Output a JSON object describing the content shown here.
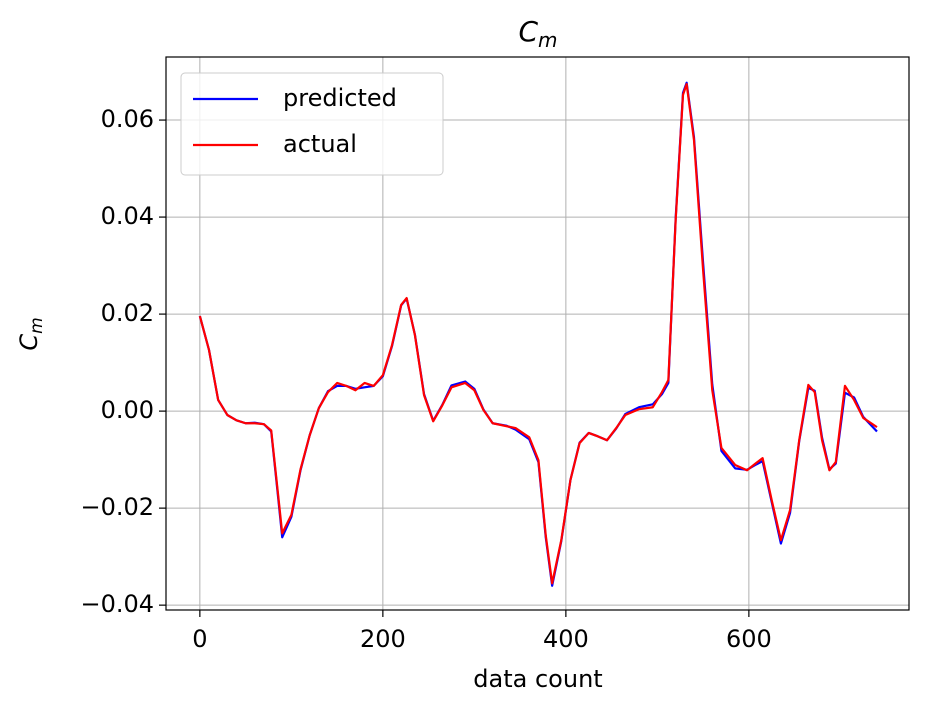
{
  "chart_data": {
    "type": "line",
    "title": [
      "C",
      "m"
    ],
    "xlabel": "data count",
    "ylabel": [
      "C",
      "m"
    ],
    "x": [
      0,
      10,
      20,
      30,
      40,
      50,
      60,
      70,
      78,
      85,
      90,
      100,
      110,
      120,
      130,
      140,
      150,
      160,
      170,
      180,
      190,
      200,
      210,
      220,
      226,
      235,
      245,
      255,
      265,
      275,
      290,
      300,
      310,
      320,
      335,
      345,
      360,
      370,
      378,
      385,
      395,
      405,
      415,
      425,
      435,
      445,
      455,
      465,
      480,
      495,
      505,
      512,
      520,
      528,
      532,
      540,
      550,
      560,
      570,
      585,
      598,
      608,
      615,
      625,
      635,
      645,
      655,
      665,
      672,
      680,
      688,
      695,
      705,
      715,
      725,
      740
    ],
    "series": [
      {
        "name": "predicted",
        "color": "#0000ff",
        "values": [
          0.0196,
          0.0126,
          0.0023,
          -0.0008,
          -0.0019,
          -0.0025,
          -0.0024,
          -0.0027,
          -0.0042,
          -0.0168,
          -0.026,
          -0.0218,
          -0.0122,
          -0.005,
          0.0006,
          0.0041,
          0.0052,
          0.0052,
          0.0046,
          0.0049,
          0.0052,
          0.0072,
          0.0134,
          0.0218,
          0.0232,
          0.0158,
          0.0035,
          -0.002,
          0.0013,
          0.0053,
          0.0061,
          0.0046,
          0.0003,
          -0.0025,
          -0.003,
          -0.0038,
          -0.0058,
          -0.0105,
          -0.026,
          -0.036,
          -0.0268,
          -0.0142,
          -0.0065,
          -0.0045,
          -0.0052,
          -0.006,
          -0.0036,
          -0.0006,
          0.0008,
          0.0014,
          0.0035,
          0.0058,
          0.0398,
          0.0656,
          0.0677,
          0.0565,
          0.0305,
          0.0055,
          -0.0082,
          -0.0118,
          -0.0121,
          -0.011,
          -0.0103,
          -0.0188,
          -0.0273,
          -0.021,
          -0.0062,
          0.0048,
          0.0042,
          -0.0055,
          -0.012,
          -0.0108,
          0.0038,
          0.0028,
          -0.0012,
          -0.0042
        ]
      },
      {
        "name": "actual",
        "color": "#ff0000",
        "values": [
          0.0196,
          0.0126,
          0.0023,
          -0.0008,
          -0.0019,
          -0.0025,
          -0.0025,
          -0.0027,
          -0.004,
          -0.0163,
          -0.0252,
          -0.0214,
          -0.012,
          -0.005,
          0.0006,
          0.0039,
          0.0058,
          0.0052,
          0.0043,
          0.0058,
          0.0052,
          0.0074,
          0.0136,
          0.0219,
          0.0233,
          0.0157,
          0.0033,
          -0.0021,
          0.0012,
          0.0049,
          0.0058,
          0.0043,
          0.0002,
          -0.0025,
          -0.0031,
          -0.0035,
          -0.0054,
          -0.0101,
          -0.0256,
          -0.0355,
          -0.0266,
          -0.0142,
          -0.0066,
          -0.0045,
          -0.0052,
          -0.006,
          -0.0035,
          -0.0008,
          0.0004,
          0.0008,
          0.0039,
          0.0064,
          0.0394,
          0.0652,
          0.0674,
          0.0559,
          0.029,
          0.0043,
          -0.0076,
          -0.0111,
          -0.0122,
          -0.0107,
          -0.0097,
          -0.0184,
          -0.0266,
          -0.0204,
          -0.006,
          0.0054,
          0.0039,
          -0.006,
          -0.0122,
          -0.0105,
          0.0052,
          0.0023,
          -0.0014,
          -0.0033
        ]
      }
    ],
    "xlim": [
      -37,
      775
    ],
    "ylim": [
      -0.041,
      0.073
    ],
    "xticks": [
      0,
      200,
      400,
      600
    ],
    "yticks": [
      {
        "value": -0.04,
        "label": "−0.04"
      },
      {
        "value": -0.02,
        "label": "−0.02"
      },
      {
        "value": 0,
        "label": "0.00"
      },
      {
        "value": 0.02,
        "label": "0.02"
      },
      {
        "value": 0.04,
        "label": "0.04"
      },
      {
        "value": 0.06,
        "label": "0.06"
      }
    ],
    "grid": true,
    "legend": "upper left"
  }
}
